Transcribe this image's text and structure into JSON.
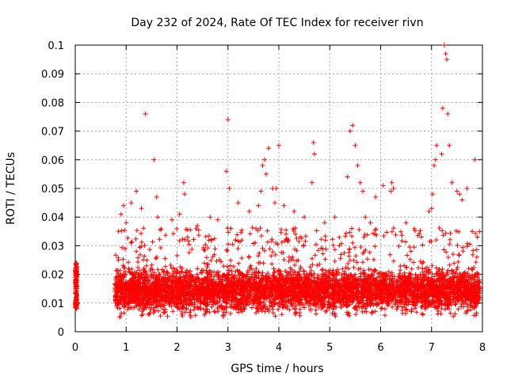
{
  "chart_data": {
    "type": "scatter",
    "title": "Day 232 of 2024, Rate Of TEC Index for receiver rivn",
    "xlabel": "GPS time / hours",
    "ylabel": "ROTI / TECUs",
    "xlim": [
      0,
      8
    ],
    "ylim": [
      0,
      0.1
    ],
    "grid": true,
    "marker": "+",
    "xticks": [
      "0",
      "1",
      "2",
      "3",
      "4",
      "5",
      "6",
      "7",
      "8"
    ],
    "yticks": [
      "0",
      "0.01",
      "0.02",
      "0.03",
      "0.04",
      "0.05",
      "0.06",
      "0.07",
      "0.08",
      "0.09",
      "0.1"
    ],
    "series": [
      {
        "name": "ROTI",
        "color": "#ff0000",
        "baseline": {
          "description": "dense band of observations; x/y pairs below are a representative sample read off the figure",
          "x_range_hours": [
            0.78,
            7.95
          ],
          "y_typical": [
            0.005,
            0.03
          ]
        },
        "x": [
          0.01,
          0.02,
          0.03,
          0.02,
          0.01,
          0.03,
          0.02,
          0.01,
          0.03,
          0.02,
          0.0,
          0.03,
          0.8,
          0.85,
          0.9,
          0.95,
          1.0,
          1.05,
          1.1,
          1.15,
          1.2,
          1.25,
          1.3,
          1.35,
          1.4,
          1.45,
          1.5,
          1.55,
          1.6,
          1.7,
          1.8,
          1.9,
          2.0,
          2.1,
          2.2,
          2.3,
          2.4,
          2.5,
          2.6,
          2.7,
          2.8,
          2.9,
          3.0,
          3.1,
          3.2,
          3.3,
          3.4,
          3.5,
          3.6,
          3.7,
          3.8,
          3.9,
          4.0,
          4.1,
          4.2,
          4.3,
          4.4,
          4.5,
          4.6,
          4.7,
          4.8,
          4.9,
          5.0,
          5.1,
          5.2,
          5.3,
          5.4,
          5.5,
          5.6,
          5.7,
          5.8,
          5.9,
          6.0,
          6.1,
          6.2,
          6.3,
          6.4,
          6.5,
          6.6,
          6.7,
          6.8,
          6.9,
          7.0,
          7.1,
          7.2,
          7.3,
          7.4,
          7.5,
          7.6,
          7.7,
          7.8,
          7.9,
          0.85,
          0.9,
          0.95,
          1.0,
          1.1,
          1.2,
          1.3,
          1.38,
          1.55,
          1.6,
          1.62,
          1.9,
          2.05,
          2.13,
          2.15,
          2.4,
          2.65,
          2.8,
          2.97,
          3.0,
          3.03,
          3.2,
          3.42,
          3.55,
          3.6,
          3.65,
          3.68,
          3.72,
          3.75,
          3.8,
          3.88,
          3.92,
          3.95,
          4.0,
          4.1,
          4.3,
          4.5,
          4.65,
          4.68,
          4.7,
          4.9,
          5.1,
          5.35,
          5.4,
          5.45,
          5.5,
          5.55,
          5.6,
          5.65,
          5.7,
          5.8,
          5.9,
          6.05,
          6.2,
          6.22,
          6.25,
          6.5,
          6.8,
          6.95,
          7.0,
          7.02,
          7.05,
          7.08,
          7.1,
          7.2,
          7.22,
          7.25,
          7.28,
          7.3,
          7.32,
          7.35,
          7.4,
          7.5,
          7.55,
          7.6,
          7.7,
          7.8,
          7.85,
          7.9
        ],
        "y": [
          0.009,
          0.012,
          0.015,
          0.018,
          0.02,
          0.022,
          0.024,
          0.01,
          0.016,
          0.019,
          0.021,
          0.013,
          0.018,
          0.025,
          0.015,
          0.02,
          0.012,
          0.022,
          0.017,
          0.014,
          0.028,
          0.016,
          0.019,
          0.011,
          0.023,
          0.015,
          0.02,
          0.013,
          0.026,
          0.018,
          0.021,
          0.014,
          0.012,
          0.009,
          0.016,
          0.019,
          0.022,
          0.015,
          0.013,
          0.017,
          0.02,
          0.012,
          0.016,
          0.014,
          0.021,
          0.018,
          0.013,
          0.017,
          0.024,
          0.015,
          0.019,
          0.022,
          0.014,
          0.018,
          0.026,
          0.016,
          0.021,
          0.012,
          0.015,
          0.019,
          0.013,
          0.017,
          0.02,
          0.014,
          0.011,
          0.016,
          0.018,
          0.013,
          0.022,
          0.015,
          0.019,
          0.012,
          0.016,
          0.02,
          0.014,
          0.011,
          0.017,
          0.013,
          0.019,
          0.015,
          0.012,
          0.021,
          0.016,
          0.014,
          0.018,
          0.011,
          0.017,
          0.013,
          0.02,
          0.015,
          0.012,
          0.01,
          0.035,
          0.041,
          0.044,
          0.038,
          0.045,
          0.049,
          0.043,
          0.076,
          0.06,
          0.047,
          0.04,
          0.039,
          0.041,
          0.052,
          0.048,
          0.037,
          0.04,
          0.039,
          0.056,
          0.074,
          0.05,
          0.045,
          0.042,
          0.036,
          0.044,
          0.049,
          0.058,
          0.06,
          0.055,
          0.064,
          0.05,
          0.045,
          0.05,
          0.065,
          0.044,
          0.042,
          0.04,
          0.052,
          0.066,
          0.062,
          0.038,
          0.04,
          0.054,
          0.07,
          0.072,
          0.065,
          0.058,
          0.052,
          0.049,
          0.04,
          0.038,
          0.047,
          0.051,
          0.049,
          0.052,
          0.05,
          0.038,
          0.033,
          0.042,
          0.043,
          0.048,
          0.058,
          0.06,
          0.065,
          0.062,
          0.078,
          0.1,
          0.097,
          0.095,
          0.076,
          0.065,
          0.052,
          0.049,
          0.048,
          0.046,
          0.05,
          0.035,
          0.06,
          0.033
        ]
      }
    ]
  }
}
